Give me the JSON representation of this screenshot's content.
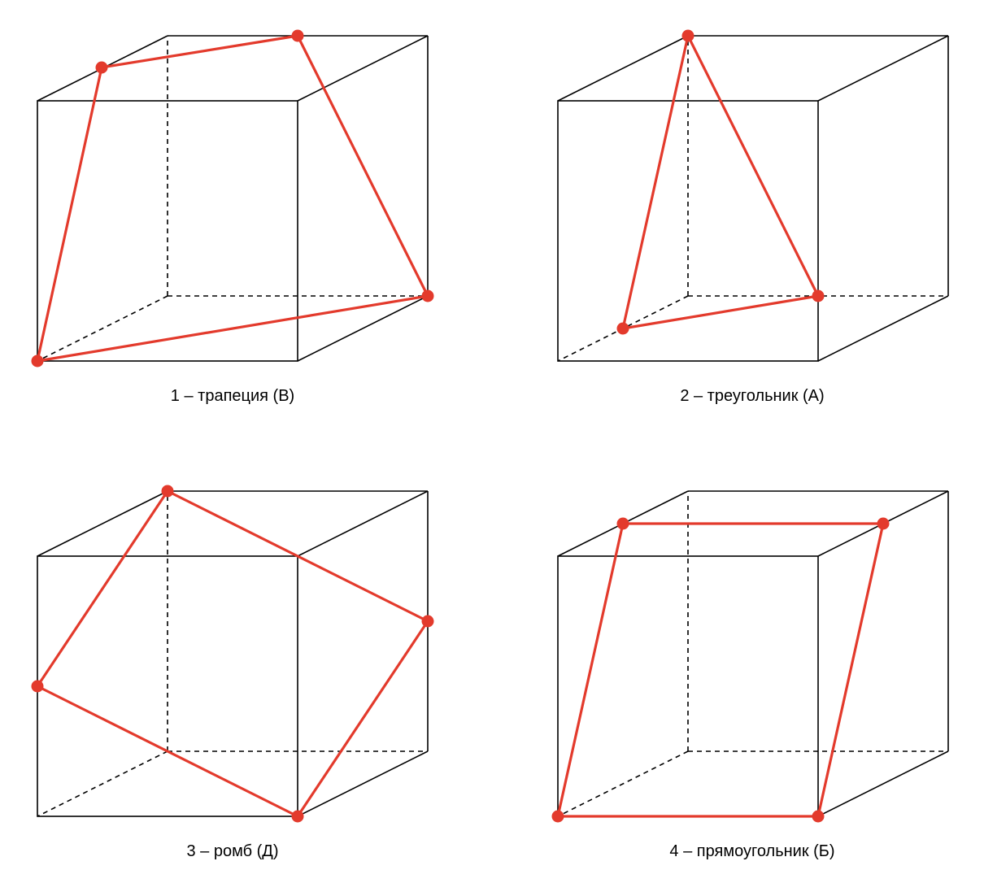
{
  "colors": {
    "section": "#e33a2c",
    "edge": "#000000"
  },
  "figures": [
    {
      "label": "1 – трапеция (В)",
      "shape": "trapezoid"
    },
    {
      "label": "2 – треугольник (А)",
      "shape": "triangle"
    },
    {
      "label": "3 – ромб (Д)",
      "shape": "rhombus"
    },
    {
      "label": "4 – прямоугольник (Б)",
      "shape": "rectangle"
    }
  ]
}
